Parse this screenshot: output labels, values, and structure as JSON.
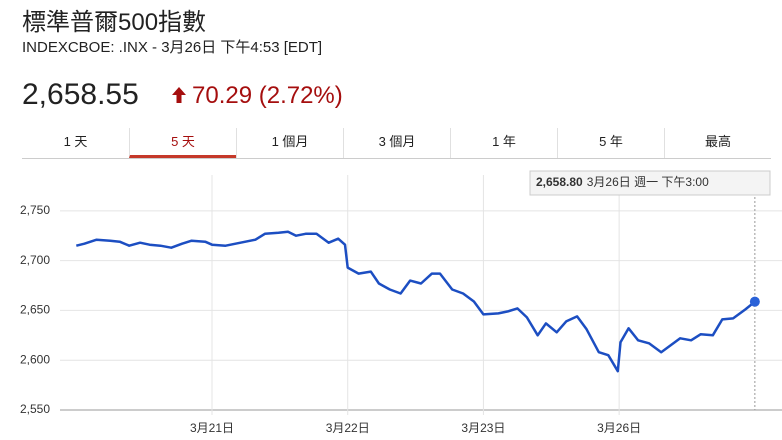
{
  "header": {
    "title": "標準普爾500指數",
    "subtitle": "INDEXCBOE: .INX - 3月26日 下午4:53 [EDT]",
    "price": "2,658.55",
    "change": "70.29 (2.72%)"
  },
  "tabs": [
    "1 天",
    "5 天",
    "1 個月",
    "3 個月",
    "1 年",
    "5 年",
    "最高"
  ],
  "selected_tab": 1,
  "chart_data": {
    "type": "line",
    "color": "#1c4ec2",
    "x": [
      0.0,
      0.06,
      0.15,
      0.25,
      0.32,
      0.39,
      0.47,
      0.54,
      0.62,
      0.7,
      0.78,
      0.85,
      0.95,
      1.0,
      1.1,
      1.21,
      1.32,
      1.39,
      1.49,
      1.56,
      1.62,
      1.69,
      1.77,
      1.86,
      1.93,
      1.98,
      2.0,
      2.08,
      2.17,
      2.23,
      2.31,
      2.39,
      2.46,
      2.54,
      2.62,
      2.68,
      2.77,
      2.85,
      2.93,
      3.0,
      3.11,
      3.18,
      3.25,
      3.32,
      3.4,
      3.46,
      3.54,
      3.61,
      3.69,
      3.76,
      3.85,
      3.92,
      3.99,
      4.01,
      4.07,
      4.14,
      4.22,
      4.31,
      4.38,
      4.45,
      4.53,
      4.6,
      4.69,
      4.76,
      4.84,
      4.93,
      5.0
    ],
    "values": [
      2715,
      2717,
      2721,
      2720,
      2719,
      2715,
      2718,
      2716,
      2715,
      2713,
      2717,
      2720,
      2719,
      2716,
      2715,
      2718,
      2721,
      2727,
      2728,
      2729,
      2725,
      2727,
      2727,
      2718,
      2722,
      2716,
      2693,
      2687,
      2689,
      2677,
      2671,
      2667,
      2680,
      2677,
      2687,
      2687,
      2671,
      2667,
      2659,
      2646,
      2647,
      2649,
      2652,
      2643,
      2625,
      2637,
      2628,
      2639,
      2644,
      2631,
      2608,
      2605,
      2589,
      2618,
      2632,
      2620,
      2617,
      2608,
      2615,
      2622,
      2620,
      2626,
      2625,
      2641,
      2642,
      2651,
      2658.8
    ],
    "xlim": [
      -0.12,
      5.2
    ],
    "ylim": [
      2550,
      2786
    ],
    "xticks": [
      {
        "value": 1,
        "label": "3月21日"
      },
      {
        "value": 2,
        "label": "3月22日"
      },
      {
        "value": 3,
        "label": "3月23日"
      },
      {
        "value": 4,
        "label": "3月26日"
      }
    ],
    "yticks": [
      {
        "value": 2550,
        "label": "2,550"
      },
      {
        "value": 2600,
        "label": "2,600"
      },
      {
        "value": 2650,
        "label": "2,650"
      },
      {
        "value": 2700,
        "label": "2,700"
      },
      {
        "value": 2750,
        "label": "2,750"
      }
    ],
    "grid": true,
    "tooltip": {
      "value_label": "2,658.80",
      "text": "3月26日 週一 下午3:00"
    }
  }
}
